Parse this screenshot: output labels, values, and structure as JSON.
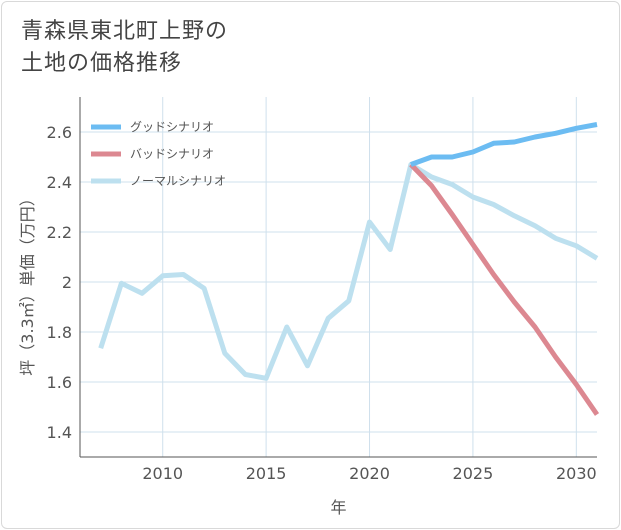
{
  "title_lines": [
    "青森県東北町上野の",
    "土地の価格推移"
  ],
  "chart_data": {
    "type": "line",
    "title": "青森県東北町上野の土地の価格推移",
    "xlabel": "年",
    "ylabel": "坪（3.3㎡）単価（万円）",
    "xlim": [
      2006,
      2031
    ],
    "ylim": [
      1.3,
      2.74
    ],
    "xticks": [
      2010,
      2015,
      2020,
      2025,
      2030
    ],
    "xtick_labels": [
      "2010",
      "2015",
      "2020",
      "2025",
      "2030"
    ],
    "yticks": [
      1.4,
      1.6,
      1.8,
      2.0,
      2.2,
      2.4,
      2.6
    ],
    "ytick_labels": [
      "1.4",
      "1.6",
      "1.8",
      "2",
      "2.2",
      "2.4",
      "2.6"
    ],
    "grid": true,
    "legend_position": "top-left",
    "series": [
      {
        "name": "グッドシナリオ",
        "color": "#6cbcf2",
        "x": [
          2022,
          2023,
          2024,
          2025,
          2026,
          2027,
          2028,
          2029,
          2030,
          2031
        ],
        "values": [
          2.47,
          2.5,
          2.5,
          2.52,
          2.555,
          2.56,
          2.58,
          2.595,
          2.615,
          2.63
        ]
      },
      {
        "name": "バッドシナリオ",
        "color": "#dc8891",
        "x": [
          2022,
          2023,
          2024,
          2025,
          2026,
          2027,
          2028,
          2029,
          2030,
          2031
        ],
        "values": [
          2.47,
          2.385,
          2.27,
          2.15,
          2.03,
          1.92,
          1.82,
          1.7,
          1.59,
          1.47
        ]
      },
      {
        "name": "ノーマルシナリオ",
        "color": "#bde0ef",
        "x": [
          2007,
          2008,
          2009,
          2010,
          2011,
          2012,
          2013,
          2014,
          2015,
          2016,
          2017,
          2018,
          2019,
          2020,
          2021,
          2022,
          2023,
          2024,
          2025,
          2026,
          2027,
          2028,
          2029,
          2030,
          2031
        ],
        "values": [
          1.735,
          1.995,
          1.955,
          2.025,
          2.03,
          1.975,
          1.715,
          1.63,
          1.615,
          1.82,
          1.665,
          1.855,
          1.925,
          2.24,
          2.13,
          2.47,
          2.42,
          2.39,
          2.34,
          2.31,
          2.265,
          2.225,
          2.175,
          2.145,
          2.095
        ]
      }
    ]
  }
}
